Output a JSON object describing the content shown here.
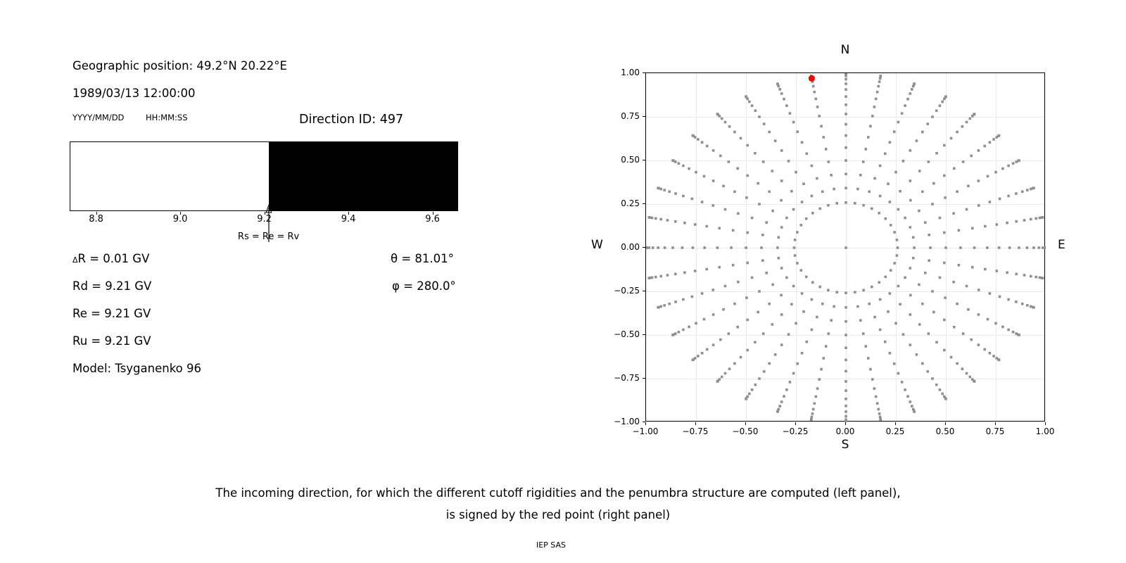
{
  "header": {
    "geo_position": "Geographic position: 49.2°N 20.22°E",
    "datetime": "1989/03/13 12:00:00",
    "date_format": "YYYY/MM/DD",
    "time_format": "HH:MM:SS",
    "direction_id": "Direction ID: 497"
  },
  "penumbra": {
    "x_range": [
      8.737,
      9.661
    ],
    "tick_values": [
      8.8,
      9.0,
      9.2,
      9.4,
      9.6
    ],
    "tick_labels": [
      "8.8",
      "9.0",
      "9.2",
      "9.4",
      "9.6"
    ],
    "regions": [
      {
        "from": 8.737,
        "to": 9.21,
        "color": "#ffffff"
      },
      {
        "from": 9.21,
        "to": 9.661,
        "color": "#000000"
      }
    ],
    "annotation": {
      "value": 9.21,
      "label": "Rs = Re = Rv"
    }
  },
  "parameters": {
    "delta_symbol": "Δ",
    "delta_r_rest": "R = 0.01 GV",
    "rd": "Rd = 9.21 GV",
    "re": "Re = 9.21 GV",
    "ru": "Ru = 9.21 GV",
    "model": "Model: Tsyganenko 96",
    "theta": "θ = 81.01°",
    "phi": "φ = 280.0°"
  },
  "compass": {
    "label_north": "N",
    "label_south": "S",
    "label_west": "W",
    "label_east": "E",
    "x_tick_values": [
      -1,
      -0.75,
      -0.5,
      -0.25,
      0,
      0.25,
      0.5,
      0.75,
      1
    ],
    "x_tick_labels": [
      "−1.00",
      "−0.75",
      "−0.50",
      "−0.25",
      "0.00",
      "0.25",
      "0.50",
      "0.75",
      "1.00"
    ],
    "y_tick_values": [
      1,
      0.75,
      0.5,
      0.25,
      0,
      -0.25,
      -0.5,
      -0.75,
      -1
    ],
    "y_tick_labels": [
      "1.00",
      "0.75",
      "0.50",
      "0.25",
      "0.00",
      "−0.25",
      "−0.50",
      "−0.75",
      "−1.00"
    ],
    "dot_color": "#8f8f8f",
    "red_color": "#ff0000"
  },
  "caption": {
    "line1": "The incoming direction, for which the different cutoff rigidities and the penumbra structure are computed (left panel),",
    "line2": "is signed by the red point (right panel)",
    "credit": "IEP SAS"
  },
  "chart_data": [
    {
      "type": "bar",
      "title": "penumbra strip (cutoff rigidity, GV)",
      "x_range": [
        8.737,
        9.661
      ],
      "x_ticks": [
        8.8,
        9.0,
        9.2,
        9.4,
        9.6
      ],
      "regions": [
        {
          "from": 8.737,
          "to": 9.21,
          "color": "#ffffff"
        },
        {
          "from": 9.21,
          "to": 9.661,
          "color": "#000000"
        }
      ],
      "annotation": {
        "value": 9.21,
        "label": "Rs = Re = Rv"
      }
    },
    {
      "type": "scatter",
      "title": "N",
      "xlabel": "S",
      "xlim": [
        -1,
        1
      ],
      "ylim": [
        -1,
        1
      ],
      "grid": true,
      "x_ticks": [
        -1,
        -0.75,
        -0.5,
        -0.25,
        0,
        0.25,
        0.5,
        0.75,
        1
      ],
      "y_ticks": [
        -1,
        -0.75,
        -0.5,
        -0.25,
        0,
        0.25,
        0.5,
        0.75,
        1
      ],
      "series": [
        {
          "name": "direction-grid",
          "marker": "square",
          "color": "#8f8f8f",
          "azimuth_deg": {
            "start": 0,
            "step": 10,
            "count": 36
          },
          "zenith_deg": {
            "start": 15,
            "step": 5,
            "count": 16
          },
          "mapping": "x = sin(zenith)*sin(azimuth), y = sin(zenith)*cos(azimuth)",
          "center_point": [
            0,
            0
          ]
        },
        {
          "name": "selected-direction",
          "marker": "circle",
          "color": "#ff0000",
          "points": [
            [
              -0.171,
              0.97
            ]
          ]
        }
      ]
    }
  ]
}
